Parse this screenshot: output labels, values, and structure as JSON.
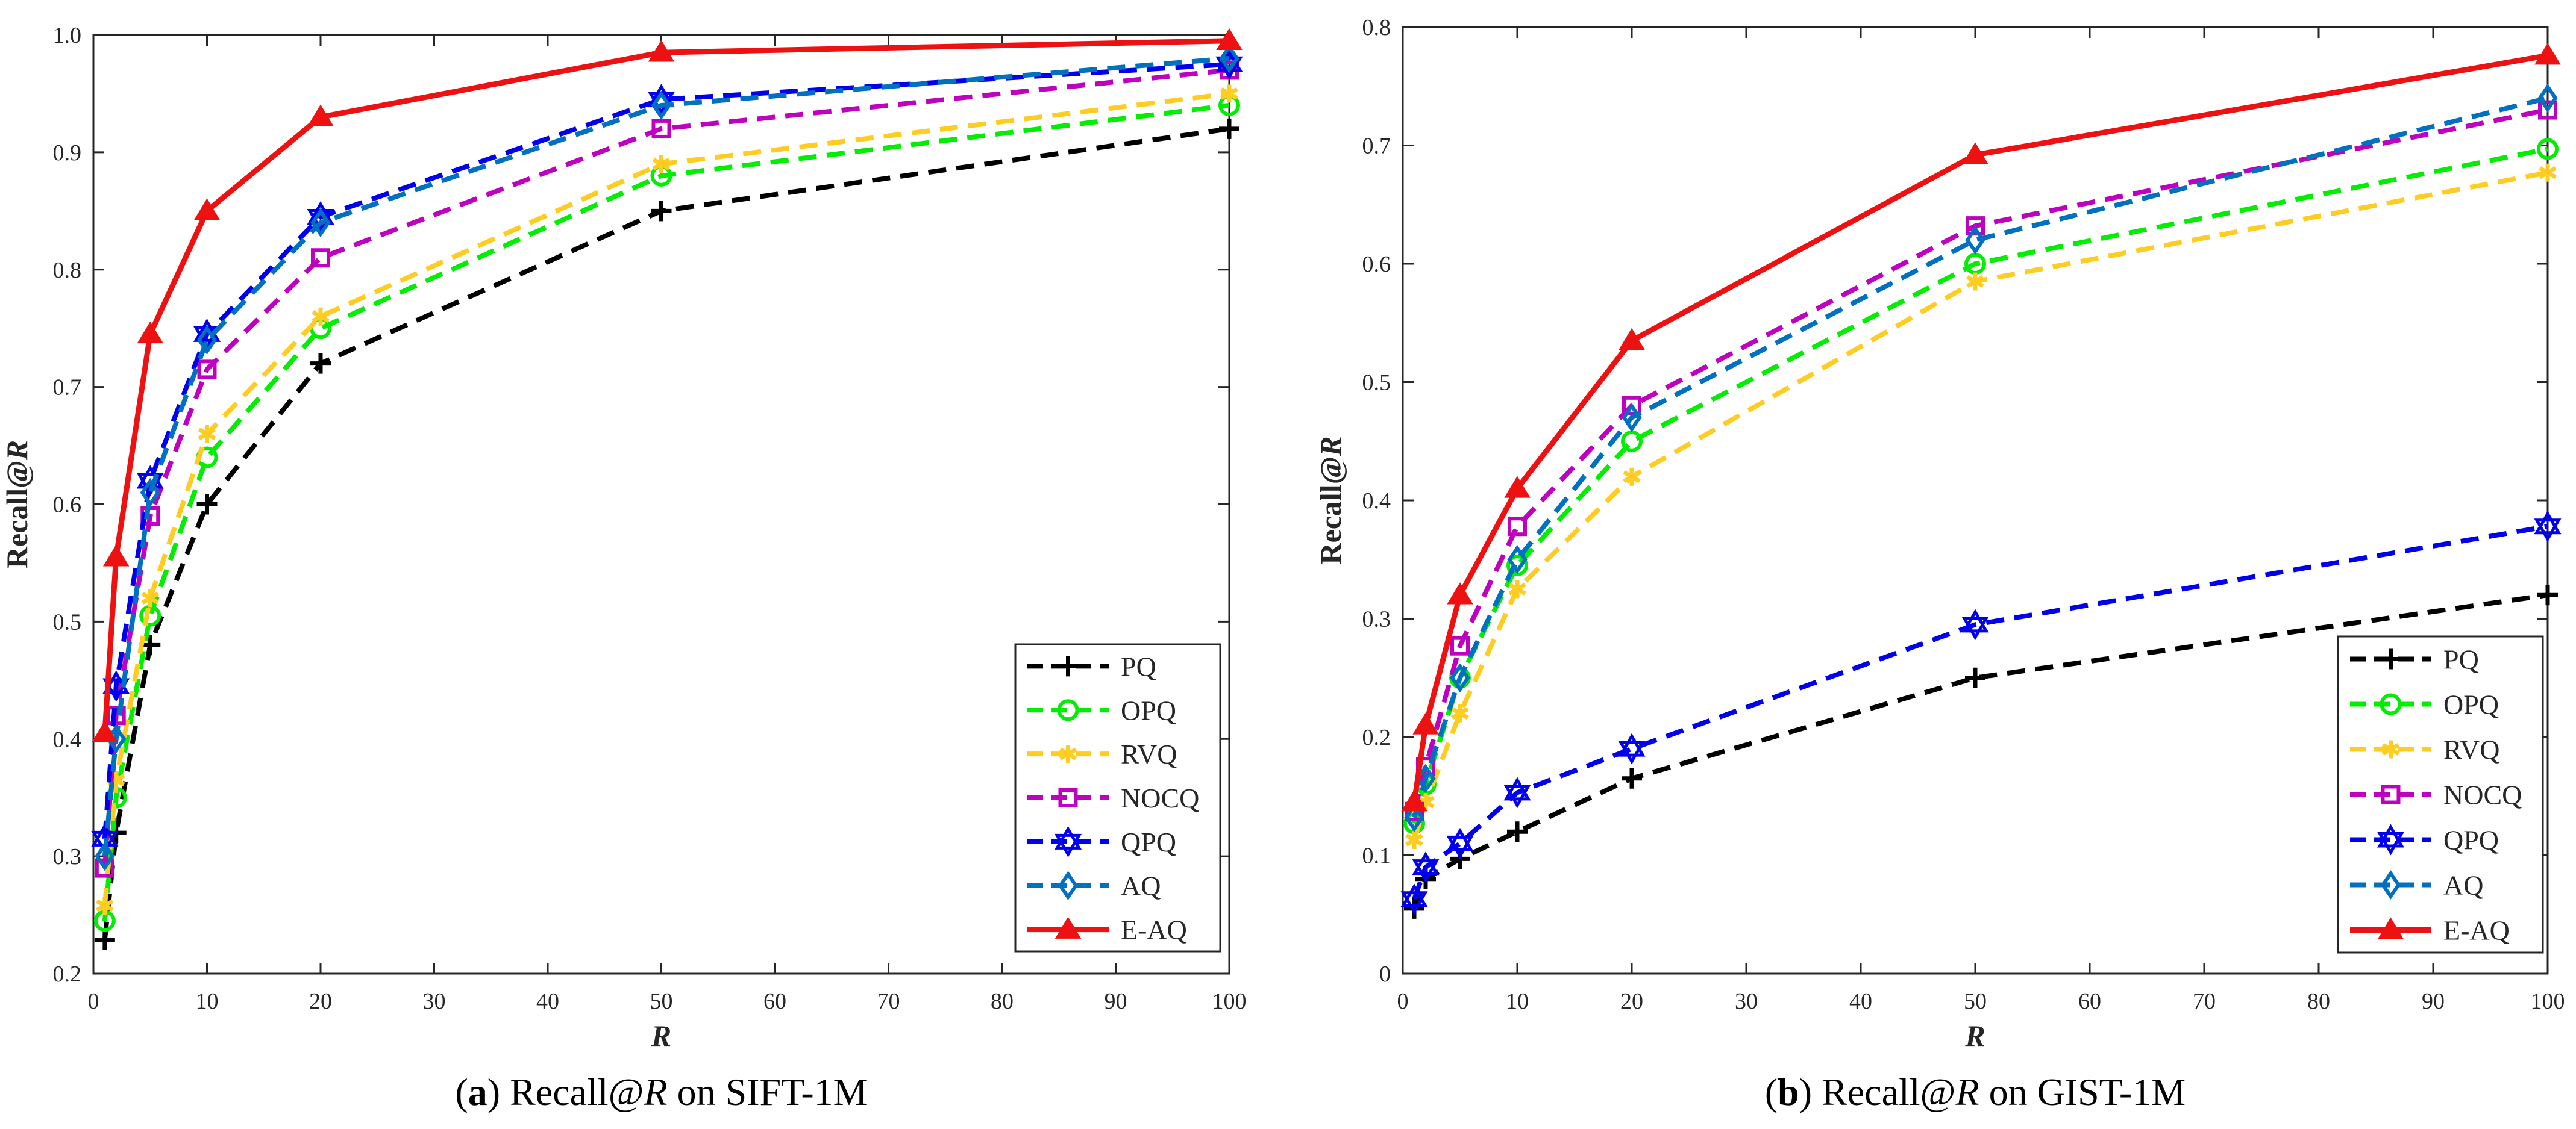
{
  "chart_data": [
    {
      "type": "line",
      "panel_label": "(a)",
      "caption": "Recall@R on SIFT-1M",
      "xlabel": "R",
      "ylabel": "Recall@R",
      "xlim": [
        0,
        100
      ],
      "ylim": [
        0.2,
        1.0
      ],
      "xticks": [
        0,
        10,
        20,
        30,
        40,
        50,
        60,
        70,
        80,
        90,
        100
      ],
      "yticks": [
        0.2,
        0.3,
        0.4,
        0.5,
        0.6,
        0.7,
        0.8,
        0.9,
        1.0
      ],
      "legend_position": "bottom-right",
      "x": [
        1,
        2,
        5,
        10,
        20,
        50,
        100
      ],
      "series": [
        {
          "name": "PQ",
          "color": "#000000",
          "marker": "plus",
          "dashed": true,
          "values": [
            0.229,
            0.32,
            0.48,
            0.6,
            0.72,
            0.85,
            0.92
          ]
        },
        {
          "name": "OPQ",
          "color": "#00ee00",
          "marker": "circle",
          "dashed": true,
          "values": [
            0.245,
            0.35,
            0.505,
            0.64,
            0.75,
            0.88,
            0.94
          ]
        },
        {
          "name": "RVQ",
          "color": "#ffcc22",
          "marker": "asterisk",
          "dashed": true,
          "values": [
            0.258,
            0.365,
            0.52,
            0.66,
            0.76,
            0.89,
            0.95
          ]
        },
        {
          "name": "NOCQ",
          "color": "#c000c0",
          "marker": "square",
          "dashed": true,
          "values": [
            0.29,
            0.42,
            0.59,
            0.715,
            0.81,
            0.92,
            0.97
          ]
        },
        {
          "name": "QPQ",
          "color": "#0000ee",
          "marker": "hexagram",
          "dashed": true,
          "values": [
            0.315,
            0.445,
            0.62,
            0.745,
            0.845,
            0.945,
            0.975
          ]
        },
        {
          "name": "AQ",
          "color": "#0070c0",
          "marker": "diamond",
          "dashed": true,
          "values": [
            0.3,
            0.4,
            0.61,
            0.74,
            0.84,
            0.94,
            0.98
          ]
        },
        {
          "name": "E-AQ",
          "color": "#ee1111",
          "marker": "triangle",
          "dashed": false,
          "values": [
            0.405,
            0.555,
            0.745,
            0.85,
            0.93,
            0.985,
            0.995
          ]
        }
      ]
    },
    {
      "type": "line",
      "panel_label": "(b)",
      "caption": "Recall@R on GIST-1M",
      "xlabel": "R",
      "ylabel": "Recall@R",
      "xlim": [
        0,
        100
      ],
      "ylim": [
        0,
        0.8
      ],
      "xticks": [
        0,
        10,
        20,
        30,
        40,
        50,
        60,
        70,
        80,
        90,
        100
      ],
      "yticks": [
        0,
        0.1,
        0.2,
        0.3,
        0.4,
        0.5,
        0.6,
        0.7,
        0.8
      ],
      "legend_position": "bottom-right",
      "x": [
        1,
        2,
        5,
        10,
        20,
        50,
        100
      ],
      "series": [
        {
          "name": "PQ",
          "color": "#000000",
          "marker": "plus",
          "dashed": true,
          "values": [
            0.055,
            0.08,
            0.097,
            0.12,
            0.165,
            0.25,
            0.32
          ]
        },
        {
          "name": "OPQ",
          "color": "#00ee00",
          "marker": "circle",
          "dashed": true,
          "values": [
            0.127,
            0.16,
            0.25,
            0.345,
            0.45,
            0.6,
            0.697
          ]
        },
        {
          "name": "RVQ",
          "color": "#ffcc22",
          "marker": "asterisk",
          "dashed": true,
          "values": [
            0.113,
            0.145,
            0.22,
            0.325,
            0.42,
            0.585,
            0.677
          ]
        },
        {
          "name": "NOCQ",
          "color": "#c000c0",
          "marker": "square",
          "dashed": true,
          "values": [
            0.137,
            0.175,
            0.277,
            0.378,
            0.48,
            0.632,
            0.73
          ]
        },
        {
          "name": "QPQ",
          "color": "#0000ee",
          "marker": "hexagram",
          "dashed": true,
          "values": [
            0.063,
            0.09,
            0.11,
            0.153,
            0.19,
            0.295,
            0.378
          ]
        },
        {
          "name": "AQ",
          "color": "#0070c0",
          "marker": "diamond",
          "dashed": true,
          "values": [
            0.132,
            0.165,
            0.25,
            0.35,
            0.47,
            0.62,
            0.74
          ]
        },
        {
          "name": "E-AQ",
          "color": "#ee1111",
          "marker": "triangle",
          "dashed": false,
          "values": [
            0.145,
            0.21,
            0.32,
            0.41,
            0.535,
            0.692,
            0.776
          ]
        }
      ]
    }
  ]
}
